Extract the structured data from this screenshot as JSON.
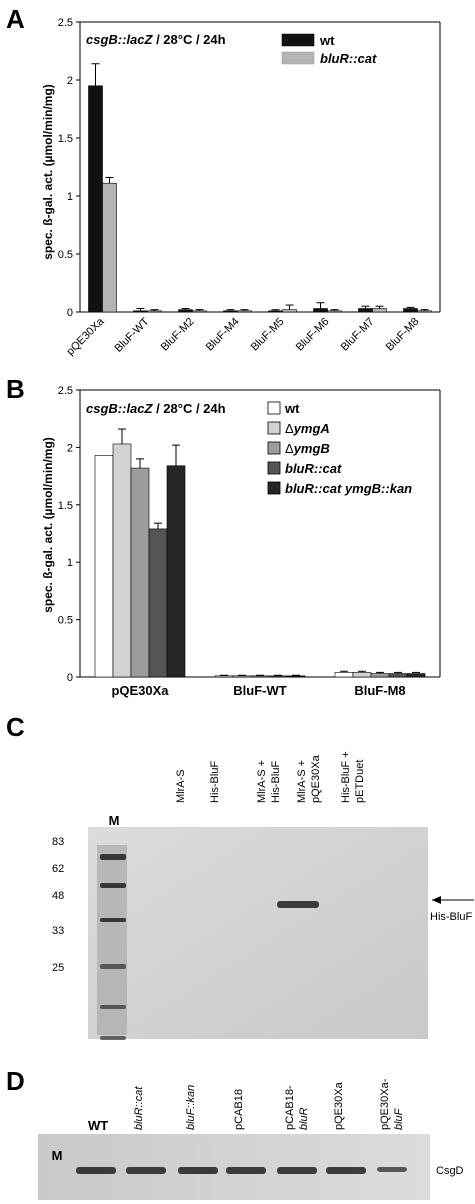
{
  "panels": {
    "A": {
      "letter": "A",
      "title_part1": "csgB::lacZ",
      "title_part2": " / 28°C / 24h",
      "ylabel": "spec. ß-gal. act. (µmol/min/mg)",
      "legend": [
        {
          "label": "wt",
          "color": "#111111"
        },
        {
          "label": "bluR::cat",
          "color": "#b4b4b4"
        }
      ]
    },
    "B": {
      "letter": "B",
      "title_part1": "csgB::lacZ",
      "title_part2": " / 28°C / 24h",
      "ylabel": "spec. ß-gal. act. (µmol/min/mg)",
      "legend": [
        {
          "label": "wt",
          "prefix": "",
          "color": "#ffffff"
        },
        {
          "label": "ymgA",
          "prefix": "Δ",
          "color": "#d2d2d2"
        },
        {
          "label": "ymgB",
          "prefix": "Δ",
          "color": "#9c9c9c"
        },
        {
          "label": "bluR::cat",
          "prefix": "",
          "color": "#555555"
        },
        {
          "label": "bluR::cat ymgB::kan",
          "prefix": "",
          "color": "#262626"
        }
      ]
    },
    "C": {
      "letter": "C",
      "marker_label": "M",
      "lanes": [
        "MlrA-S",
        "His-BluF",
        "MlrA-S +\nHis-BluF",
        "MlrA-S +\npQE30Xa",
        "His-BluF +\npETDuet"
      ],
      "mw_markers": [
        "83",
        "62",
        "48",
        "33",
        "25"
      ],
      "band_annotation": "His-BluF"
    },
    "D": {
      "letter": "D",
      "marker_label": "M",
      "lanes": [
        "WT",
        "bluR::cat",
        "bluF::kan",
        "pCAB18",
        "pCAB18-\nbluR",
        "pQE30Xa",
        "pQE30Xa-\nbluF"
      ],
      "band_annotation": "CsgD"
    }
  },
  "chart_data": [
    {
      "type": "bar",
      "title": "csgB::lacZ / 28°C / 24h",
      "xlabel": "",
      "ylabel": "spec. ß-gal. act. (µmol/min/mg)",
      "ylim": [
        0,
        2.5
      ],
      "yticks": [
        "0",
        "0.5",
        "1",
        "1.5",
        "2",
        "2.5"
      ],
      "categories": [
        "pQE30Xa",
        "BluF-WT",
        "BluF-M2",
        "BluF-M4",
        "BluF-M5",
        "BluF-M6",
        "BluF-M7",
        "BluF-M8"
      ],
      "series": [
        {
          "name": "wt",
          "color": "#111111",
          "values": [
            1.95,
            0.01,
            0.02,
            0.01,
            0.01,
            0.03,
            0.03,
            0.03
          ],
          "errors": [
            0.19,
            0.02,
            0.01,
            0.01,
            0.01,
            0.05,
            0.02,
            0.01
          ]
        },
        {
          "name": "bluR::cat",
          "color": "#b4b4b4",
          "values": [
            1.11,
            0.01,
            0.01,
            0.01,
            0.02,
            0.01,
            0.03,
            0.01
          ],
          "errors": [
            0.05,
            0.01,
            0.01,
            0.01,
            0.04,
            0.01,
            0.02,
            0.01
          ]
        }
      ],
      "legend_position": "top-right",
      "x_label_rotation": "rotated"
    },
    {
      "type": "bar",
      "title": "csgB::lacZ / 28°C / 24h",
      "xlabel": "",
      "ylabel": "spec. ß-gal. act. (µmol/min/mg)",
      "ylim": [
        0,
        2.5
      ],
      "yticks": [
        "0",
        "0.5",
        "1",
        "1.5",
        "2",
        "2.5"
      ],
      "categories": [
        "pQE30Xa",
        "BluF-WT",
        "BluF-M8"
      ],
      "series": [
        {
          "name": "wt",
          "color": "#ffffff",
          "values": [
            1.93,
            0.01,
            0.04
          ],
          "errors": [
            0,
            0.005,
            0.01
          ]
        },
        {
          "name": "ΔymgA",
          "color": "#d2d2d2",
          "values": [
            2.03,
            0.01,
            0.04
          ],
          "errors": [
            0.13,
            0.005,
            0.01
          ]
        },
        {
          "name": "ΔymgB",
          "color": "#9c9c9c",
          "values": [
            1.82,
            0.01,
            0.03
          ],
          "errors": [
            0.08,
            0.005,
            0.01
          ]
        },
        {
          "name": "bluR::cat",
          "color": "#555555",
          "values": [
            1.29,
            0.01,
            0.03
          ],
          "errors": [
            0.05,
            0.005,
            0.01
          ]
        },
        {
          "name": "bluR::cat ymgB::kan",
          "color": "#262626",
          "values": [
            1.84,
            0.01,
            0.03
          ],
          "errors": [
            0.18,
            0.005,
            0.01
          ]
        }
      ],
      "legend_position": "top-right"
    }
  ]
}
